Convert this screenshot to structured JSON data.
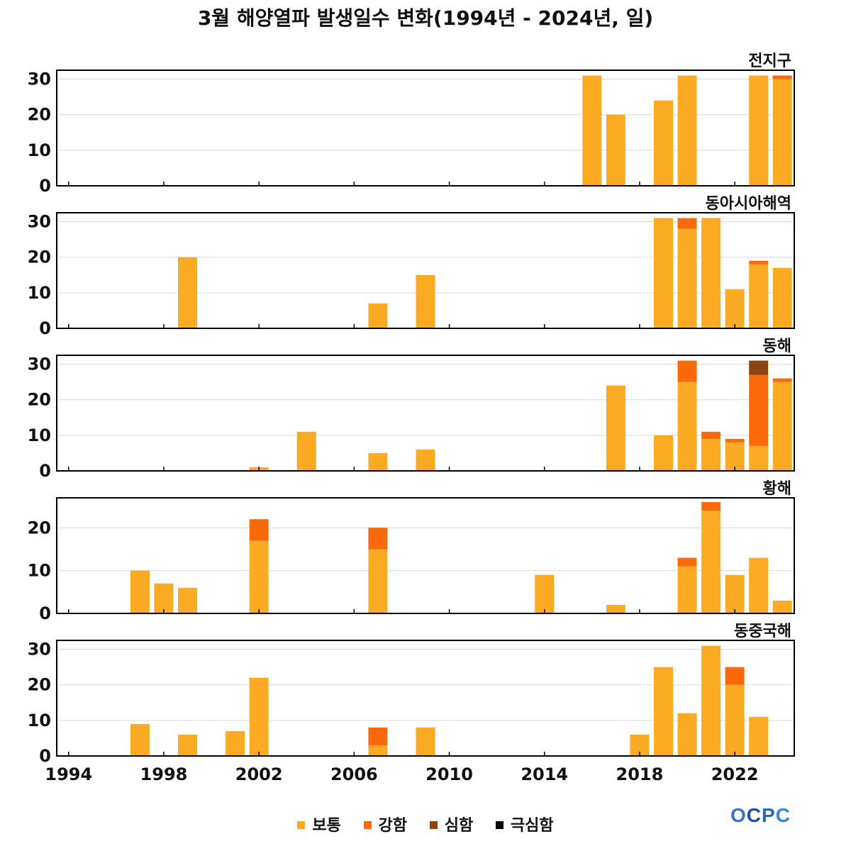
{
  "title": "3월 해양열파 발생일수 변화(1994년 - 2024년, 일)",
  "logo": "OCPC",
  "colors": {
    "normal": "#FBAA24",
    "strong": "#FB6A0A",
    "severe": "#8B4510",
    "extreme": "#000000"
  },
  "chart_data": {
    "type": "bar",
    "stacked": true,
    "x_range": [
      1993.5,
      2024.5
    ],
    "x_ticks": [
      1994,
      1998,
      2002,
      2006,
      2010,
      2014,
      2018,
      2022
    ],
    "legend": [
      {
        "key": "normal",
        "label": "보통"
      },
      {
        "key": "strong",
        "label": "강함"
      },
      {
        "key": "severe",
        "label": "심함"
      },
      {
        "key": "extreme",
        "label": "극심함"
      }
    ],
    "legend_position": "bottom-center",
    "grid": true,
    "panels": [
      {
        "name": "전지구",
        "ylim": [
          0,
          32.5
        ],
        "yticks": [
          0,
          10,
          20,
          30
        ],
        "bars": [
          {
            "year": 2016,
            "normal": 31,
            "strong": 0,
            "severe": 0,
            "extreme": 0
          },
          {
            "year": 2017,
            "normal": 20,
            "strong": 0,
            "severe": 0,
            "extreme": 0
          },
          {
            "year": 2019,
            "normal": 24,
            "strong": 0,
            "severe": 0,
            "extreme": 0
          },
          {
            "year": 2020,
            "normal": 31,
            "strong": 0,
            "severe": 0,
            "extreme": 0
          },
          {
            "year": 2023,
            "normal": 31,
            "strong": 0,
            "severe": 0,
            "extreme": 0
          },
          {
            "year": 2024,
            "normal": 30,
            "strong": 1,
            "severe": 0,
            "extreme": 0
          }
        ]
      },
      {
        "name": "동아시아해역",
        "ylim": [
          0,
          32.5
        ],
        "yticks": [
          0,
          10,
          20,
          30
        ],
        "bars": [
          {
            "year": 1999,
            "normal": 20,
            "strong": 0,
            "severe": 0,
            "extreme": 0
          },
          {
            "year": 2007,
            "normal": 7,
            "strong": 0,
            "severe": 0,
            "extreme": 0
          },
          {
            "year": 2009,
            "normal": 15,
            "strong": 0,
            "severe": 0,
            "extreme": 0
          },
          {
            "year": 2019,
            "normal": 31,
            "strong": 0,
            "severe": 0,
            "extreme": 0
          },
          {
            "year": 2020,
            "normal": 28,
            "strong": 3,
            "severe": 0,
            "extreme": 0
          },
          {
            "year": 2021,
            "normal": 31,
            "strong": 0,
            "severe": 0,
            "extreme": 0
          },
          {
            "year": 2022,
            "normal": 11,
            "strong": 0,
            "severe": 0,
            "extreme": 0
          },
          {
            "year": 2023,
            "normal": 18,
            "strong": 1,
            "severe": 0,
            "extreme": 0
          },
          {
            "year": 2024,
            "normal": 17,
            "strong": 0,
            "severe": 0,
            "extreme": 0
          }
        ]
      },
      {
        "name": "동해",
        "ylim": [
          0,
          32.5
        ],
        "yticks": [
          0,
          10,
          20,
          30
        ],
        "bars": [
          {
            "year": 2002,
            "normal": 1,
            "strong": 0,
            "severe": 0,
            "extreme": 0
          },
          {
            "year": 2004,
            "normal": 11,
            "strong": 0,
            "severe": 0,
            "extreme": 0
          },
          {
            "year": 2007,
            "normal": 5,
            "strong": 0,
            "severe": 0,
            "extreme": 0
          },
          {
            "year": 2009,
            "normal": 6,
            "strong": 0,
            "severe": 0,
            "extreme": 0
          },
          {
            "year": 2017,
            "normal": 24,
            "strong": 0,
            "severe": 0,
            "extreme": 0
          },
          {
            "year": 2019,
            "normal": 10,
            "strong": 0,
            "severe": 0,
            "extreme": 0
          },
          {
            "year": 2020,
            "normal": 25,
            "strong": 6,
            "severe": 0,
            "extreme": 0
          },
          {
            "year": 2021,
            "normal": 9,
            "strong": 2,
            "severe": 0,
            "extreme": 0
          },
          {
            "year": 2022,
            "normal": 8,
            "strong": 1,
            "severe": 0,
            "extreme": 0
          },
          {
            "year": 2023,
            "normal": 7,
            "strong": 20,
            "severe": 4,
            "extreme": 0
          },
          {
            "year": 2024,
            "normal": 25,
            "strong": 1,
            "severe": 0,
            "extreme": 0
          }
        ]
      },
      {
        "name": "황해",
        "ylim": [
          0,
          27
        ],
        "yticks": [
          0,
          10,
          20
        ],
        "bars": [
          {
            "year": 1997,
            "normal": 10,
            "strong": 0,
            "severe": 0,
            "extreme": 0
          },
          {
            "year": 1998,
            "normal": 7,
            "strong": 0,
            "severe": 0,
            "extreme": 0
          },
          {
            "year": 1999,
            "normal": 6,
            "strong": 0,
            "severe": 0,
            "extreme": 0
          },
          {
            "year": 2002,
            "normal": 17,
            "strong": 5,
            "severe": 0,
            "extreme": 0
          },
          {
            "year": 2007,
            "normal": 15,
            "strong": 5,
            "severe": 0,
            "extreme": 0
          },
          {
            "year": 2014,
            "normal": 9,
            "strong": 0,
            "severe": 0,
            "extreme": 0
          },
          {
            "year": 2017,
            "normal": 2,
            "strong": 0,
            "severe": 0,
            "extreme": 0
          },
          {
            "year": 2020,
            "normal": 11,
            "strong": 2,
            "severe": 0,
            "extreme": 0
          },
          {
            "year": 2021,
            "normal": 24,
            "strong": 2,
            "severe": 0,
            "extreme": 0
          },
          {
            "year": 2022,
            "normal": 9,
            "strong": 0,
            "severe": 0,
            "extreme": 0
          },
          {
            "year": 2023,
            "normal": 13,
            "strong": 0,
            "severe": 0,
            "extreme": 0
          },
          {
            "year": 2024,
            "normal": 3,
            "strong": 0,
            "severe": 0,
            "extreme": 0
          }
        ]
      },
      {
        "name": "동중국해",
        "ylim": [
          0,
          32.5
        ],
        "yticks": [
          0,
          10,
          20,
          30
        ],
        "bars": [
          {
            "year": 1997,
            "normal": 9,
            "strong": 0,
            "severe": 0,
            "extreme": 0
          },
          {
            "year": 1999,
            "normal": 6,
            "strong": 0,
            "severe": 0,
            "extreme": 0
          },
          {
            "year": 2001,
            "normal": 7,
            "strong": 0,
            "severe": 0,
            "extreme": 0
          },
          {
            "year": 2002,
            "normal": 22,
            "strong": 0,
            "severe": 0,
            "extreme": 0
          },
          {
            "year": 2007,
            "normal": 3,
            "strong": 5,
            "severe": 0,
            "extreme": 0
          },
          {
            "year": 2009,
            "normal": 8,
            "strong": 0,
            "severe": 0,
            "extreme": 0
          },
          {
            "year": 2018,
            "normal": 6,
            "strong": 0,
            "severe": 0,
            "extreme": 0
          },
          {
            "year": 2019,
            "normal": 25,
            "strong": 0,
            "severe": 0,
            "extreme": 0
          },
          {
            "year": 2020,
            "normal": 12,
            "strong": 0,
            "severe": 0,
            "extreme": 0
          },
          {
            "year": 2021,
            "normal": 31,
            "strong": 0,
            "severe": 0,
            "extreme": 0
          },
          {
            "year": 2022,
            "normal": 20,
            "strong": 5,
            "severe": 0,
            "extreme": 0
          },
          {
            "year": 2023,
            "normal": 11,
            "strong": 0,
            "severe": 0,
            "extreme": 0
          }
        ]
      }
    ]
  }
}
